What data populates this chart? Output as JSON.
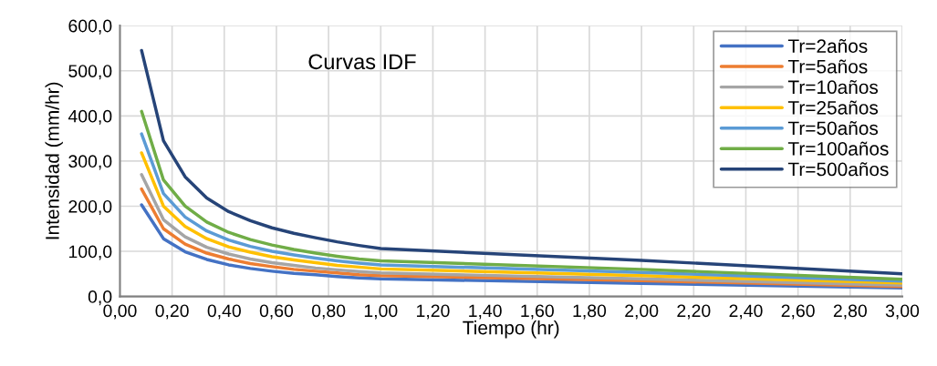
{
  "chart_data": {
    "type": "line",
    "title": "Curvas IDF",
    "xlabel": "Tiempo (hr)",
    "ylabel": "Intensidad (mm/hr)",
    "x": [
      0.083,
      0.167,
      0.25,
      0.333,
      0.417,
      0.5,
      0.583,
      0.667,
      0.75,
      0.833,
      0.917,
      1.0,
      2.0,
      3.0
    ],
    "series": [
      {
        "name": "Tr=2años",
        "color": "#4472c4",
        "values": [
          203,
          128,
          99,
          82,
          70,
          62,
          56,
          51,
          48,
          44,
          41,
          39,
          29,
          19
        ]
      },
      {
        "name": "Tr=5años",
        "color": "#ed7d31",
        "values": [
          238,
          150,
          116,
          96,
          83,
          73,
          66,
          60,
          56,
          52,
          48,
          46,
          35,
          22
        ]
      },
      {
        "name": "Tr=10años",
        "color": "#a5a5a5",
        "values": [
          270,
          170,
          132,
          109,
          94,
          83,
          75,
          69,
          63,
          59,
          55,
          52,
          39,
          25
        ]
      },
      {
        "name": "Tr=25años",
        "color": "#ffc000",
        "values": [
          318,
          200,
          155,
          128,
          110,
          98,
          88,
          81,
          75,
          69,
          65,
          61,
          46,
          30
        ]
      },
      {
        "name": "Tr=50años",
        "color": "#5b9bd5",
        "values": [
          360,
          228,
          176,
          145,
          125,
          111,
          100,
          92,
          85,
          79,
          74,
          70,
          53,
          34
        ]
      },
      {
        "name": "Tr=100años",
        "color": "#70ad47",
        "values": [
          410,
          258,
          200,
          165,
          142,
          126,
          114,
          104,
          96,
          89,
          83,
          79,
          60,
          38
        ]
      },
      {
        "name": "Tr=500años",
        "color": "#264478",
        "values": [
          545,
          345,
          265,
          218,
          188,
          168,
          152,
          140,
          130,
          121,
          113,
          106,
          80,
          50
        ]
      }
    ],
    "xlim": [
      0,
      3.0
    ],
    "xticks": [
      {
        "value": 0,
        "label": "0,00"
      },
      {
        "value": 0.2,
        "label": "0,20"
      },
      {
        "value": 0.4,
        "label": "0,40"
      },
      {
        "value": 0.6,
        "label": "0,60"
      },
      {
        "value": 0.8,
        "label": "0,80"
      },
      {
        "value": 1.0,
        "label": "1,00"
      },
      {
        "value": 1.2,
        "label": "1,20"
      },
      {
        "value": 1.4,
        "label": "1,40"
      },
      {
        "value": 1.6,
        "label": "1,60"
      },
      {
        "value": 1.8,
        "label": "1,80"
      },
      {
        "value": 2.0,
        "label": "2,00"
      },
      {
        "value": 2.2,
        "label": "2,20"
      },
      {
        "value": 2.4,
        "label": "2,40"
      },
      {
        "value": 2.6,
        "label": "2,60"
      },
      {
        "value": 2.8,
        "label": "2,80"
      },
      {
        "value": 3.0,
        "label": "3,00"
      }
    ],
    "ylim": [
      0,
      600
    ],
    "yticks": [
      {
        "value": 0,
        "label": "0,0"
      },
      {
        "value": 100,
        "label": "100,0"
      },
      {
        "value": 200,
        "label": "200,0"
      },
      {
        "value": 300,
        "label": "300,0"
      },
      {
        "value": 400,
        "label": "400,0"
      },
      {
        "value": 500,
        "label": "500,0"
      },
      {
        "value": 600,
        "label": "600,0"
      }
    ],
    "grid": true,
    "legend": "top right",
    "marker": "none",
    "line_style": "solid"
  }
}
